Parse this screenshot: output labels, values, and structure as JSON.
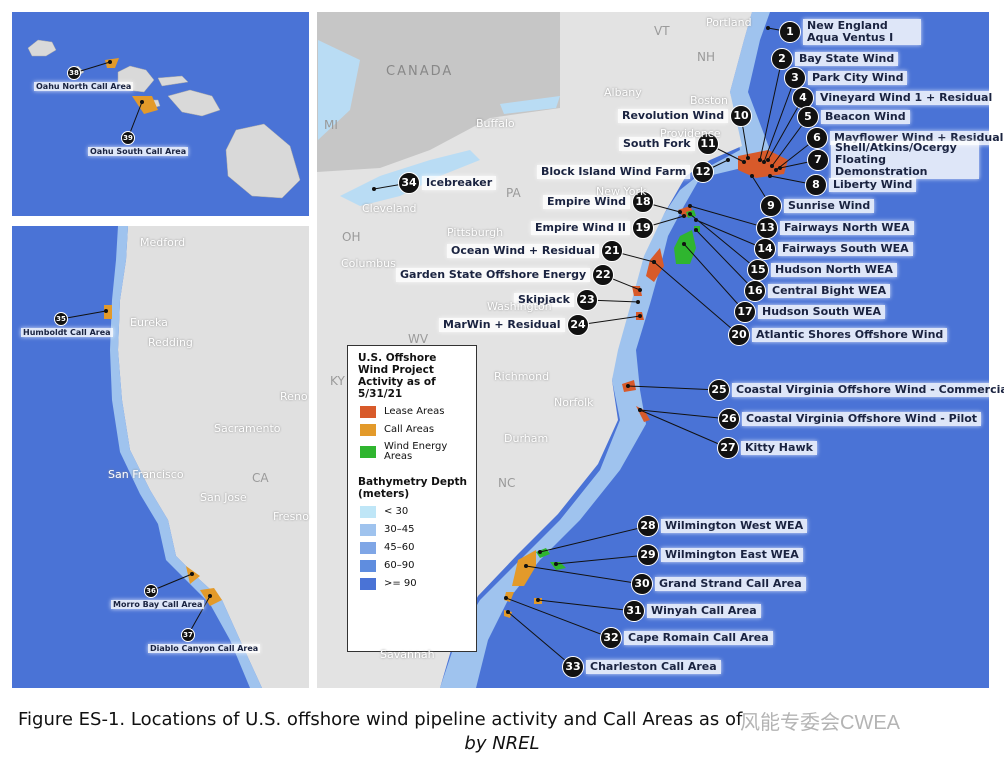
{
  "hawaii": {
    "projects": [
      {
        "number": 38,
        "label": "Oahu North Call Area"
      },
      {
        "number": 39,
        "label": "Oahu South Call Area"
      }
    ]
  },
  "west_coast": {
    "places": [
      "Medford",
      "Eureka",
      "Redding",
      "Reno",
      "Sacramento",
      "San Francisco",
      "San Jose",
      "CA",
      "Fresno"
    ],
    "projects": [
      {
        "number": 35,
        "label": "Humboldt Call Area"
      },
      {
        "number": 36,
        "label": "Morro Bay Call Area"
      },
      {
        "number": 37,
        "label": "Diablo Canyon Call Area"
      }
    ]
  },
  "east_coast": {
    "places": [
      "Portland",
      "VT",
      "NH",
      "CANADA",
      "Albany",
      "Boston",
      "Providence",
      "MI",
      "Buffalo",
      "PA",
      "Cleveland",
      "OH",
      "Pittsburgh",
      "Columbus",
      "New York",
      "Washington",
      "WV",
      "Richmond",
      "KY",
      "Norfolk",
      "Durham",
      "NC",
      "Savannah"
    ],
    "projects": [
      {
        "number": 1,
        "label": "New England Aqua Ventus I"
      },
      {
        "number": 2,
        "label": "Bay State Wind"
      },
      {
        "number": 3,
        "label": "Park City Wind"
      },
      {
        "number": 4,
        "label": "Vineyard Wind 1 + Residual"
      },
      {
        "number": 5,
        "label": "Beacon Wind"
      },
      {
        "number": 6,
        "label": "Mayflower Wind + Residual"
      },
      {
        "number": 7,
        "label": "Shell/Atkins/Ocergy Floating Demonstration"
      },
      {
        "number": 8,
        "label": "Liberty Wind"
      },
      {
        "number": 9,
        "label": "Sunrise Wind"
      },
      {
        "number": 10,
        "label": "Revolution Wind"
      },
      {
        "number": 11,
        "label": "South Fork"
      },
      {
        "number": 12,
        "label": "Block Island Wind Farm"
      },
      {
        "number": 13,
        "label": "Fairways North WEA"
      },
      {
        "number": 14,
        "label": "Fairways South WEA"
      },
      {
        "number": 15,
        "label": "Hudson North WEA"
      },
      {
        "number": 16,
        "label": "Central Bight WEA"
      },
      {
        "number": 17,
        "label": "Hudson South WEA"
      },
      {
        "number": 18,
        "label": "Empire Wind"
      },
      {
        "number": 19,
        "label": "Empire Wind II"
      },
      {
        "number": 20,
        "label": "Atlantic Shores Offshore Wind"
      },
      {
        "number": 21,
        "label": "Ocean Wind + Residual"
      },
      {
        "number": 22,
        "label": "Garden State Offshore Energy"
      },
      {
        "number": 23,
        "label": "Skipjack"
      },
      {
        "number": 24,
        "label": "MarWin + Residual"
      },
      {
        "number": 25,
        "label": "Coastal Virginia Offshore Wind - Commercial"
      },
      {
        "number": 26,
        "label": "Coastal Virginia Offshore Wind - Pilot"
      },
      {
        "number": 27,
        "label": "Kitty Hawk"
      },
      {
        "number": 28,
        "label": "Wilmington West WEA"
      },
      {
        "number": 29,
        "label": "Wilmington East WEA"
      },
      {
        "number": 30,
        "label": "Grand Strand Call Area"
      },
      {
        "number": 31,
        "label": "Winyah Call Area"
      },
      {
        "number": 32,
        "label": "Cape Romain Call Area"
      },
      {
        "number": 33,
        "label": "Charleston Call Area"
      },
      {
        "number": 34,
        "label": "Icebreaker"
      }
    ]
  },
  "legend": {
    "title": "U.S. Offshore Wind Project Activity as of 5/31/21",
    "areas": [
      "Lease Areas",
      "Call Areas",
      "Wind Energy Areas"
    ],
    "bathymetry_title": "Bathymetry Depth (meters)",
    "depths": [
      "< 30",
      "30–45",
      "45–60",
      "60–90",
      ">= 90"
    ]
  },
  "caption": {
    "text": "Figure ES-1. Locations of U.S. offshore wind pipeline activity and Call Areas as of",
    "byline": "by NREL",
    "watermark": "风能专委会CWEA"
  }
}
